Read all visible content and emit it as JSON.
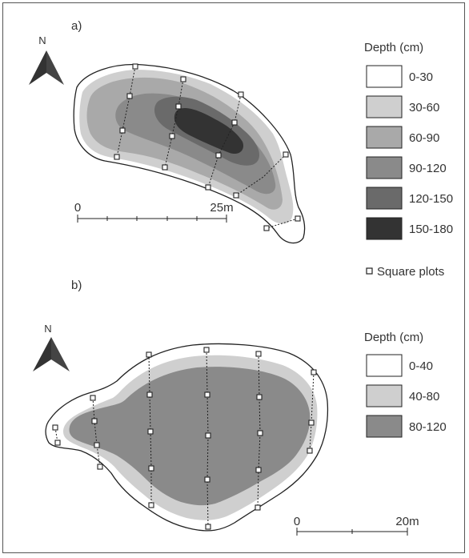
{
  "panel_a": {
    "label": "a)",
    "north": "N",
    "legend_title": "Depth (cm)",
    "classes": [
      {
        "label": "0-30",
        "color": "#ffffff"
      },
      {
        "label": "30-60",
        "color": "#cfcfcf"
      },
      {
        "label": "60-90",
        "color": "#a9a9a9"
      },
      {
        "label": "90-120",
        "color": "#8a8a8a"
      },
      {
        "label": "120-150",
        "color": "#6a6a6a"
      },
      {
        "label": "150-180",
        "color": "#333333"
      }
    ],
    "scale_start": "0",
    "scale_end": "25m"
  },
  "square_plots_label": "Square plots",
  "panel_b": {
    "label": "b)",
    "north": "N",
    "legend_title": "Depth (cm)",
    "classes": [
      {
        "label": "0-40",
        "color": "#ffffff"
      },
      {
        "label": "40-80",
        "color": "#cfcfcf"
      },
      {
        "label": "80-120",
        "color": "#8a8a8a"
      }
    ],
    "scale_start": "0",
    "scale_end": "20m"
  }
}
